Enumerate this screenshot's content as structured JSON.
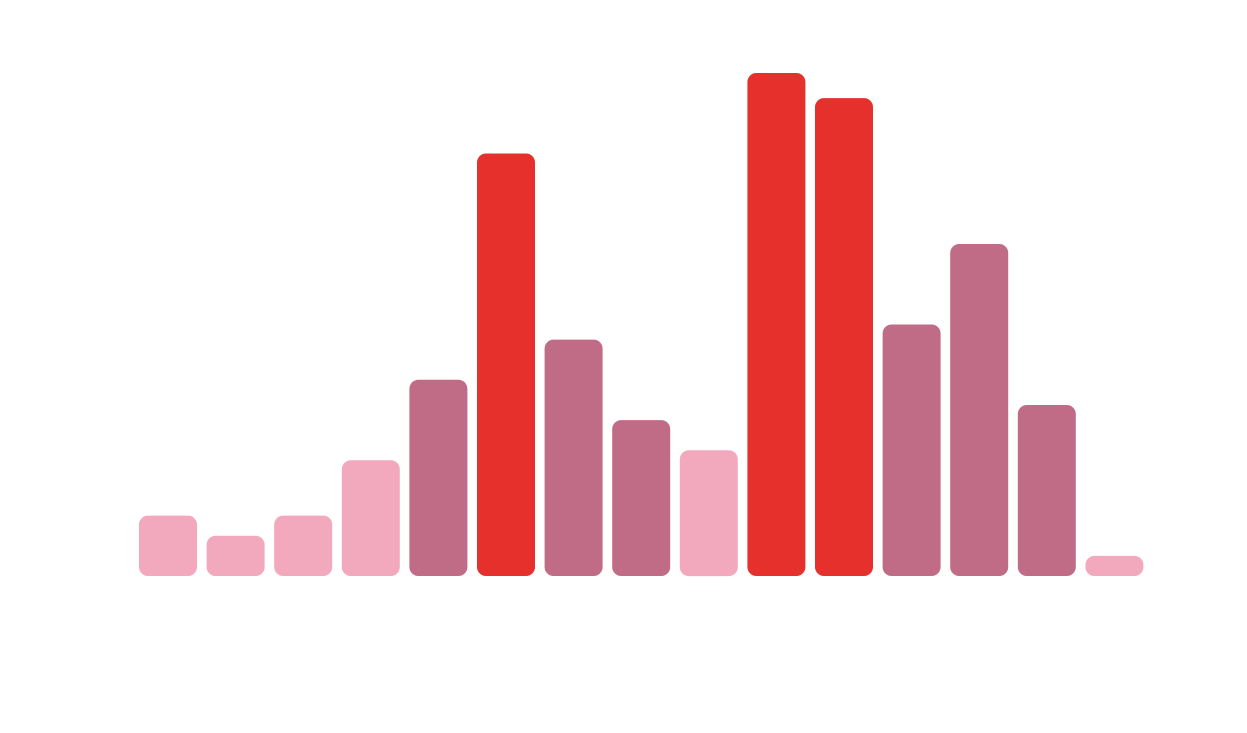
{
  "chart_data": {
    "type": "bar",
    "title": "",
    "xlabel": "",
    "ylabel": "",
    "grid": false,
    "legend": "none",
    "ylim": [
      0,
      100
    ],
    "values": [
      12,
      8,
      12,
      23,
      39,
      84,
      47,
      31,
      25,
      100,
      95,
      50,
      66,
      34,
      4
    ],
    "levels": [
      "low",
      "low",
      "low",
      "low",
      "mid",
      "high",
      "mid",
      "mid",
      "low",
      "high",
      "high",
      "mid",
      "mid",
      "mid",
      "low"
    ],
    "colors": {
      "low": "#f2a8bd",
      "mid": "#c06c86",
      "high": "#e5302b"
    }
  }
}
